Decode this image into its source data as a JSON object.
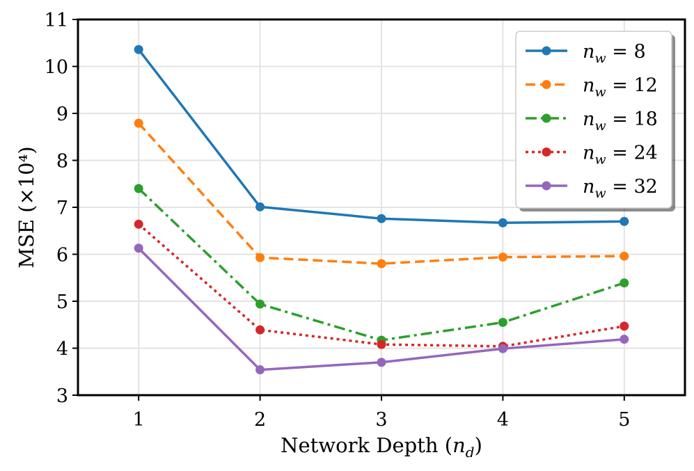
{
  "chart_data": {
    "type": "line",
    "title": "",
    "xlabel": "Network Depth (n_d)",
    "ylabel": "MSE (×10⁴)",
    "x": [
      1,
      2,
      3,
      4,
      5
    ],
    "xlim": [
      0.5,
      5.5
    ],
    "ylim": [
      3,
      11
    ],
    "xticks": [
      "1",
      "2",
      "3",
      "4",
      "5"
    ],
    "yticks": [
      "3",
      "4",
      "5",
      "6",
      "7",
      "8",
      "9",
      "10",
      "11"
    ],
    "grid": true,
    "legend_position": "top-right",
    "series": [
      {
        "name": "n_w = 8",
        "label": "nw = 8",
        "color": "#1f77b4",
        "dash": "solid",
        "values": [
          10.36,
          7.01,
          6.76,
          6.67,
          6.7
        ]
      },
      {
        "name": "n_w = 12",
        "label": "nw = 12",
        "color": "#ff7f0e",
        "dash": "dashed",
        "values": [
          8.79,
          5.93,
          5.8,
          5.94,
          5.96
        ]
      },
      {
        "name": "n_w = 18",
        "label": "nw = 18",
        "color": "#2ca02c",
        "dash": "dashdot",
        "values": [
          7.4,
          4.94,
          4.17,
          4.55,
          5.39
        ]
      },
      {
        "name": "n_w = 24",
        "label": "nw = 24",
        "color": "#d62728",
        "dash": "dotted",
        "values": [
          6.64,
          4.39,
          4.08,
          4.04,
          4.47
        ]
      },
      {
        "name": "n_w = 32",
        "label": "nw = 32",
        "color": "#9467bd",
        "dash": "solid",
        "values": [
          6.13,
          3.54,
          3.7,
          3.99,
          4.19
        ]
      }
    ]
  }
}
